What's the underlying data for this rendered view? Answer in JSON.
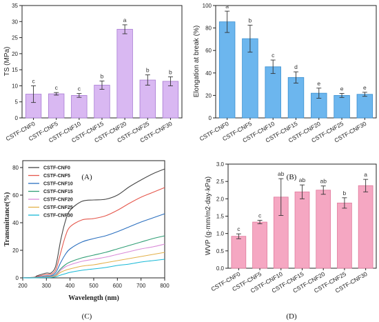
{
  "chart_data": [
    {
      "type": "bar",
      "panel_label": "(A)",
      "ylabel": "TS (MPa)",
      "ylim": [
        0,
        35
      ],
      "yticks": [
        0,
        5,
        10,
        15,
        20,
        25,
        30,
        35
      ],
      "categories": [
        "CSTF-CNF0",
        "CSTF-CNF5",
        "CSTF-CNF10",
        "CSTF-CNF15",
        "CSTF-CNF20",
        "CSTF-CNF25",
        "CSTF-CNF30"
      ],
      "values": [
        7.4,
        7.5,
        7.0,
        10.2,
        27.6,
        11.8,
        11.4
      ],
      "errors": [
        2.6,
        0.4,
        0.6,
        1.3,
        1.4,
        1.6,
        1.4
      ],
      "letters": [
        "c",
        "c",
        "c",
        "b",
        "a",
        "b",
        "b"
      ],
      "color": "#d9b8f2",
      "edge": "#a77ad3"
    },
    {
      "type": "bar",
      "panel_label": "(B)",
      "ylabel": "Elongation at break (%)",
      "ylim": [
        0,
        100
      ],
      "yticks": [
        0,
        20,
        40,
        60,
        80,
        100
      ],
      "categories": [
        "CSTF-CNF0",
        "CSTF-CNF5",
        "CSTF-CNF10",
        "CSTF-CNF15",
        "CSTF-CNF20",
        "CSTF-CNF25",
        "CSTF-CNF30"
      ],
      "values": [
        85.5,
        70.5,
        45.5,
        36.0,
        22.0,
        20.0,
        21.0
      ],
      "errors": [
        9.5,
        12.0,
        6.0,
        5.0,
        4.5,
        1.8,
        1.8
      ],
      "letters": [
        "a",
        "b",
        "c",
        "d",
        "e",
        "e",
        "e"
      ],
      "color": "#6cb6ee",
      "edge": "#3a8fd0"
    },
    {
      "type": "line",
      "panel_label": "(C)",
      "xlabel": "Wavelength (nm)",
      "ylabel": "Transmittance(%)",
      "xlim": [
        200,
        800
      ],
      "ylim": [
        0,
        85
      ],
      "xticks": [
        200,
        300,
        400,
        500,
        600,
        700,
        800
      ],
      "yticks": [
        0,
        20,
        40,
        60,
        80
      ],
      "x": [
        200,
        250,
        260,
        300,
        320,
        340,
        360,
        380,
        400,
        450,
        500,
        550,
        600,
        650,
        700,
        750,
        800
      ],
      "series": [
        {
          "name": "CSTF-CNF0",
          "color": "#444444",
          "values": [
            0,
            0.5,
            1.5,
            3.5,
            3.6,
            9,
            27,
            41,
            49,
            55.5,
            56.5,
            57,
            60,
            66,
            71,
            75.5,
            79
          ]
        },
        {
          "name": "CSTF-CNF5",
          "color": "#e5564b",
          "values": [
            0,
            0.3,
            1.0,
            2.5,
            2.6,
            6,
            18,
            30,
            37,
            42,
            43,
            45,
            49,
            54,
            58.5,
            62,
            65.5
          ]
        },
        {
          "name": "CSTF-CNF10",
          "color": "#2a6fbf",
          "values": [
            0,
            0.2,
            0.6,
            1.5,
            1.6,
            4,
            11,
            17,
            21,
            26,
            28.5,
            30.5,
            33.5,
            37,
            40.5,
            43.5,
            46.5
          ]
        },
        {
          "name": "CSTF-CNF15",
          "color": "#2f9e75",
          "values": [
            0,
            0.1,
            0.4,
            1.0,
            1.1,
            2.5,
            6.5,
            9.5,
            11.5,
            14.5,
            16.5,
            18.5,
            21,
            23.5,
            26,
            28.5,
            30.5
          ]
        },
        {
          "name": "CSTF-CNF20",
          "color": "#d98ad8",
          "values": [
            0,
            0.1,
            0.3,
            0.8,
            0.9,
            2,
            5.5,
            8,
            9.5,
            12,
            13.5,
            15,
            17,
            19,
            21,
            22.5,
            24.5
          ]
        },
        {
          "name": "CSTF-CNF25",
          "color": "#e3b049",
          "values": [
            0,
            0.1,
            0.2,
            0.5,
            0.6,
            1.5,
            4,
            5.5,
            6.5,
            8.5,
            9.5,
            11,
            12.5,
            14,
            15.5,
            17,
            18.5
          ]
        },
        {
          "name": "CSTF-CNF30",
          "color": "#16b8d6",
          "values": [
            0,
            0.0,
            0.1,
            0.2,
            0.3,
            0.8,
            2,
            3,
            4,
            5.5,
            6.5,
            7.5,
            9,
            10,
            11.5,
            12.5,
            13.5
          ]
        }
      ]
    },
    {
      "type": "bar",
      "panel_label": "(D)",
      "ylabel": "WVP (g·mm/m2·day·kPa)",
      "ylim": [
        0,
        3.0
      ],
      "yticks": [
        0.0,
        0.5,
        1.0,
        1.5,
        2.0,
        2.5,
        3.0
      ],
      "categories": [
        "CSTF-CNF0",
        "CSTF-CNF5",
        "CSTF-CNF10",
        "CSTF-CNF15",
        "CSTF-CNF20",
        "CSTF-CNF25",
        "CSTF-CNF30"
      ],
      "values": [
        0.92,
        1.33,
        2.05,
        2.2,
        2.25,
        1.88,
        2.38
      ],
      "errors": [
        0.07,
        0.05,
        0.53,
        0.2,
        0.12,
        0.15,
        0.18
      ],
      "letters": [
        "c",
        "c",
        "ab",
        "ab",
        "ab",
        "b",
        "a"
      ],
      "color": "#f5a7c2",
      "edge": "#e07a9c"
    }
  ]
}
